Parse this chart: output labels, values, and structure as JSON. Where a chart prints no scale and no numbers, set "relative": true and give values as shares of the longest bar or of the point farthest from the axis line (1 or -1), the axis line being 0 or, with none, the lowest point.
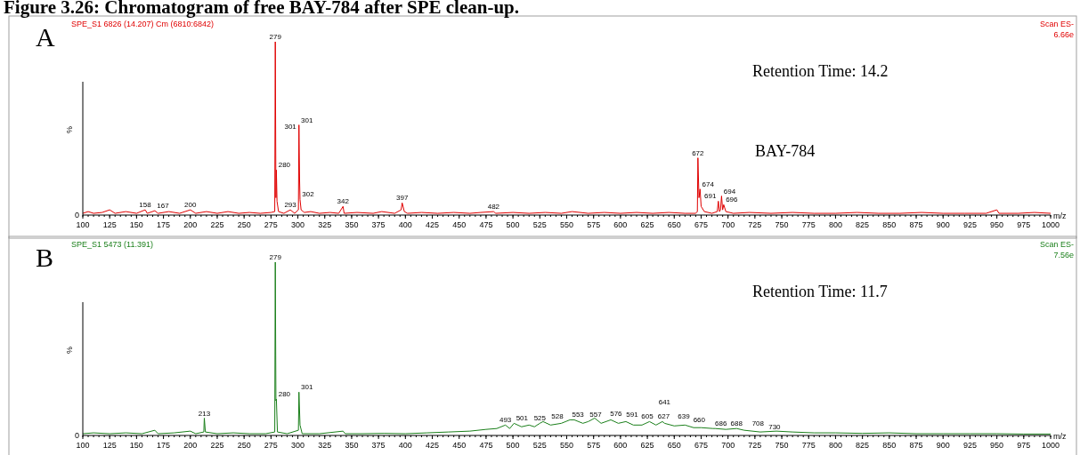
{
  "chart_data": [
    {
      "type": "line",
      "title": "Figure 3.26: Chromatogram of free BAY-784 after SPE clean-up.",
      "relative": true,
      "xlabel": "m/z",
      "ylabel": "%",
      "xlim": [
        100,
        1000
      ],
      "xticks": [
        100,
        125,
        150,
        175,
        200,
        225,
        250,
        275,
        300,
        325,
        350,
        375,
        400,
        425,
        450,
        475,
        500,
        525,
        550,
        575,
        600,
        625,
        650,
        675,
        700,
        725,
        750,
        775,
        800,
        825,
        850,
        875,
        900,
        925,
        950,
        975,
        1000
      ],
      "series": [
        {
          "color": "#e00000",
          "x": [
            100,
            105,
            110,
            118,
            125,
            130,
            140,
            150,
            158,
            160,
            167,
            170,
            180,
            190,
            200,
            205,
            215,
            225,
            235,
            245,
            255,
            265,
            275,
            278.5,
            279,
            279.6,
            280,
            280.6,
            282,
            287,
            293,
            297,
            300.5,
            301,
            301.6,
            302,
            303,
            306,
            312,
            320,
            330,
            338,
            342,
            343,
            355,
            370,
            378,
            390,
            396,
            397,
            399,
            402,
            415,
            430,
            445,
            460,
            470,
            482,
            484,
            500,
            515,
            530,
            545,
            555,
            570,
            585,
            600,
            615,
            630,
            645,
            660,
            670,
            671.5,
            672,
            673,
            674,
            675,
            678,
            685,
            690,
            691,
            692,
            693,
            694,
            695,
            696,
            698,
            705,
            720,
            740,
            760,
            780,
            800,
            820,
            840,
            860,
            880,
            900,
            920,
            940,
            950,
            952,
            970,
            985,
            1000
          ],
          "values": [
            0.01,
            0.02,
            0.01,
            0.015,
            0.03,
            0.01,
            0.02,
            0.01,
            0.03,
            0.01,
            0.025,
            0.01,
            0.02,
            0.01,
            0.03,
            0.01,
            0.02,
            0.01,
            0.02,
            0.01,
            0.015,
            0.01,
            0.015,
            0.02,
            1,
            0.1,
            0.26,
            0.08,
            0.02,
            0.01,
            0.03,
            0.01,
            0.03,
            0.52,
            0.2,
            0.09,
            0.03,
            0.015,
            0.02,
            0.01,
            0.015,
            0.01,
            0.05,
            0.01,
            0.015,
            0.01,
            0.02,
            0.01,
            0.03,
            0.07,
            0.02,
            0.01,
            0.015,
            0.01,
            0.015,
            0.01,
            0.015,
            0.02,
            0.01,
            0.015,
            0.01,
            0.015,
            0.01,
            0.02,
            0.01,
            0.015,
            0.01,
            0.015,
            0.01,
            0.015,
            0.01,
            0.01,
            0.02,
            0.33,
            0.1,
            0.15,
            0.05,
            0.02,
            0.01,
            0.02,
            0.08,
            0.02,
            0.03,
            0.11,
            0.03,
            0.06,
            0.02,
            0.01,
            0.015,
            0.01,
            0.015,
            0.01,
            0.01,
            0.015,
            0.01,
            0.01,
            0.015,
            0.01,
            0.01,
            0.01,
            0.03,
            0.01,
            0.01,
            0.015,
            0.01
          ]
        }
      ],
      "annotations": [
        "A",
        "SPE_S1 6826 (14.207) Cm (6810:6842)",
        "Retention Time: 14.2",
        "BAY-784",
        "Scan ES-",
        "6.66e",
        "0",
        {
          "text": "279",
          "x": 279,
          "y": 1
        },
        {
          "text": "301",
          "x": 301,
          "y": 0.52
        },
        {
          "text": "301",
          "x": 300.5,
          "y": 0.48
        },
        {
          "text": "280",
          "x": 280,
          "y": 0.26
        },
        {
          "text": "302",
          "x": 302,
          "y": 0.09
        },
        {
          "text": "293",
          "x": 293,
          "y": 0.03
        },
        {
          "text": "342",
          "x": 342,
          "y": 0.05
        },
        {
          "text": "397",
          "x": 397,
          "y": 0.07
        },
        {
          "text": "158",
          "x": 158,
          "y": 0.03
        },
        {
          "text": "167",
          "x": 167,
          "y": 0.025
        },
        {
          "text": "200",
          "x": 200,
          "y": 0.03
        },
        {
          "text": "482",
          "x": 482,
          "y": 0.02
        },
        {
          "text": "672",
          "x": 672,
          "y": 0.33
        },
        {
          "text": "674",
          "x": 674,
          "y": 0.15
        },
        {
          "text": "691",
          "x": 691,
          "y": 0.08
        },
        {
          "text": "694",
          "x": 694,
          "y": 0.11
        },
        {
          "text": "696",
          "x": 696,
          "y": 0.06
        }
      ]
    },
    {
      "type": "line",
      "relative": true,
      "xlabel": "m/z",
      "ylabel": "%",
      "xlim": [
        100,
        1000
      ],
      "xticks": [
        100,
        125,
        150,
        175,
        200,
        225,
        250,
        275,
        300,
        325,
        350,
        375,
        400,
        425,
        450,
        475,
        500,
        525,
        550,
        575,
        600,
        625,
        650,
        675,
        700,
        725,
        750,
        775,
        800,
        825,
        850,
        875,
        900,
        925,
        950,
        975,
        1000
      ],
      "series": [
        {
          "color": "#1a7f1a",
          "x": [
            100,
            110,
            125,
            140,
            155,
            167,
            170,
            185,
            200,
            205,
            212.5,
            213,
            214,
            225,
            240,
            255,
            270,
            278.5,
            279,
            279.6,
            280,
            281,
            290,
            300.5,
            301,
            302,
            304,
            320,
            342,
            344,
            360,
            380,
            400,
            420,
            440,
            460,
            475,
            485,
            493,
            497,
            501,
            508,
            515,
            520,
            525,
            528,
            535,
            545,
            553,
            557,
            565,
            570,
            576,
            582,
            591,
            598,
            605,
            612,
            620,
            627,
            633,
            639,
            641,
            650,
            660,
            668,
            675,
            686,
            688,
            698,
            708,
            715,
            730,
            745,
            760,
            780,
            800,
            825,
            850,
            875,
            900,
            925,
            950,
            975,
            1000
          ],
          "values": [
            0.01,
            0.015,
            0.01,
            0.015,
            0.01,
            0.03,
            0.01,
            0.015,
            0.025,
            0.01,
            0.02,
            0.1,
            0.02,
            0.01,
            0.015,
            0.01,
            0.01,
            0.02,
            1,
            0.2,
            0.21,
            0.02,
            0.01,
            0.03,
            0.25,
            0.06,
            0.01,
            0.01,
            0.025,
            0.01,
            0.01,
            0.012,
            0.01,
            0.015,
            0.02,
            0.025,
            0.035,
            0.04,
            0.06,
            0.04,
            0.07,
            0.05,
            0.06,
            0.05,
            0.07,
            0.08,
            0.06,
            0.07,
            0.09,
            0.09,
            0.07,
            0.08,
            0.1,
            0.07,
            0.09,
            0.07,
            0.08,
            0.06,
            0.06,
            0.08,
            0.06,
            0.08,
            0.07,
            0.055,
            0.06,
            0.045,
            0.045,
            0.04,
            0.04,
            0.035,
            0.04,
            0.03,
            0.02,
            0.025,
            0.02,
            0.015,
            0.015,
            0.012,
            0.015,
            0.01,
            0.01,
            0.01,
            0.01,
            0.008,
            0.008
          ]
        }
      ],
      "annotations": [
        "B",
        "SPE_S1 5473 (11.391)",
        "Retention Time: 11.7",
        "Scan ES-",
        "7.56e",
        "0",
        {
          "text": "279",
          "x": 279,
          "y": 1
        },
        {
          "text": "280",
          "x": 280,
          "y": 0.21
        },
        {
          "text": "301",
          "x": 301,
          "y": 0.25
        },
        {
          "text": "213",
          "x": 213,
          "y": 0.1
        },
        {
          "text": "493",
          "x": 493,
          "y": 0.06
        },
        {
          "text": "501",
          "x": 501,
          "y": 0.07
        },
        {
          "text": "525",
          "x": 525,
          "y": 0.07
        },
        {
          "text": "528",
          "x": 528,
          "y": 0.08
        },
        {
          "text": "553",
          "x": 553,
          "y": 0.09
        },
        {
          "text": "557",
          "x": 557,
          "y": 0.09
        },
        {
          "text": "576",
          "x": 576,
          "y": 0.1
        },
        {
          "text": "591",
          "x": 591,
          "y": 0.09
        },
        {
          "text": "605",
          "x": 605,
          "y": 0.08
        },
        {
          "text": "627",
          "x": 627,
          "y": 0.08
        },
        {
          "text": "639",
          "x": 639,
          "y": 0.08
        },
        {
          "text": "641",
          "x": 641,
          "y": 0.07
        },
        {
          "text": "660",
          "x": 660,
          "y": 0.06
        },
        {
          "text": "686",
          "x": 686,
          "y": 0.04
        },
        {
          "text": "688",
          "x": 688,
          "y": 0.04
        },
        {
          "text": "708",
          "x": 708,
          "y": 0.04
        },
        {
          "text": "730",
          "x": 730,
          "y": 0.02
        }
      ]
    }
  ]
}
